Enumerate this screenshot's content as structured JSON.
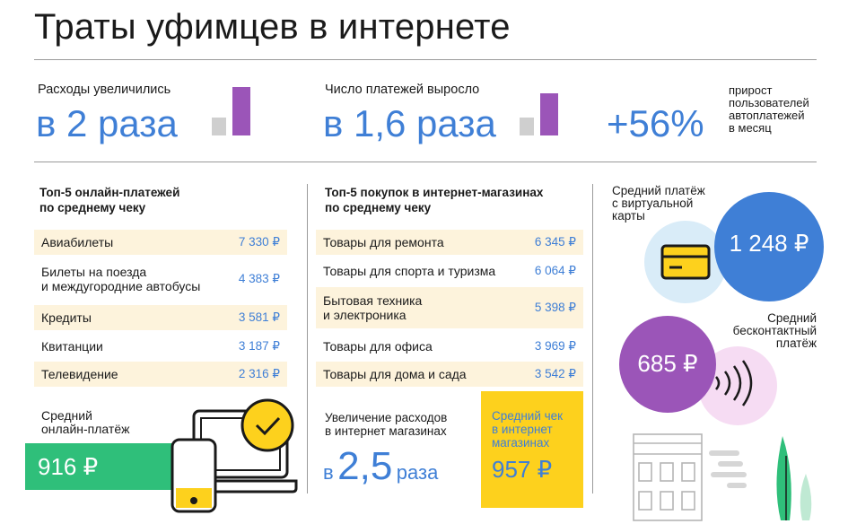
{
  "title": "Траты уфимцев в интернете",
  "stats": [
    {
      "label": "Расходы увеличились",
      "value": "в 2 раза"
    },
    {
      "label": "Число платежей выросло",
      "value": "в 1,6 раза"
    },
    {
      "value": "+56%",
      "note": [
        "прирост",
        "пользователей",
        "автоплатежей",
        "в месяц"
      ]
    }
  ],
  "online_top": {
    "title": [
      "Топ-5 онлайн-платежей",
      "по среднему чеку"
    ],
    "rows": [
      {
        "label": "Авиабилеты",
        "value": "7 330 ₽"
      },
      {
        "label": "Билеты на поезда\nи междугородние автобусы",
        "value": "4 383 ₽"
      },
      {
        "label": "Кредиты",
        "value": "3 581 ₽"
      },
      {
        "label": "Квитанции",
        "value": "3 187 ₽"
      },
      {
        "label": "Телевидение",
        "value": "2 316 ₽"
      }
    ],
    "avg_label": [
      "Средний",
      "онлайн-платёж"
    ],
    "avg_value": "916 ₽"
  },
  "shop_top": {
    "title": [
      "Топ-5 покупок в интернет-магазинах",
      "по среднему чеку"
    ],
    "rows": [
      {
        "label": "Товары для ремонта",
        "value": "6 345 ₽"
      },
      {
        "label": "Товары для спорта и туризма",
        "value": "6 064 ₽"
      },
      {
        "label": "Бытовая техника\nи электроника",
        "value": "5 398 ₽"
      },
      {
        "label": "Товары для офиса",
        "value": "3 969 ₽"
      },
      {
        "label": "Товары для дома и сада",
        "value": "3 542 ₽"
      }
    ],
    "increase_label": [
      "Увеличение расходов",
      "в интернет магазинах"
    ],
    "increase_prefix": "в",
    "increase_value": "2,5",
    "increase_suffix": "раза",
    "avg_label": [
      "Средний чек",
      "в интернет",
      "магазинах"
    ],
    "avg_value": "957 ₽"
  },
  "virtual": {
    "label": [
      "Средний платёж",
      "с виртуальной",
      "карты"
    ],
    "value": "1 248 ₽"
  },
  "contactless": {
    "label": [
      "Средний",
      "бесконтактный",
      "платёж"
    ],
    "value": "685 ₽"
  },
  "colors": {
    "accent_blue": "#3f7fd6",
    "purple": "#9b55b8",
    "green": "#2fbf7a",
    "yellow": "#fdd11d",
    "shade": "#fdf3dc",
    "light_blue": "#d9ecf8",
    "light_pink": "#f6dcf3"
  }
}
